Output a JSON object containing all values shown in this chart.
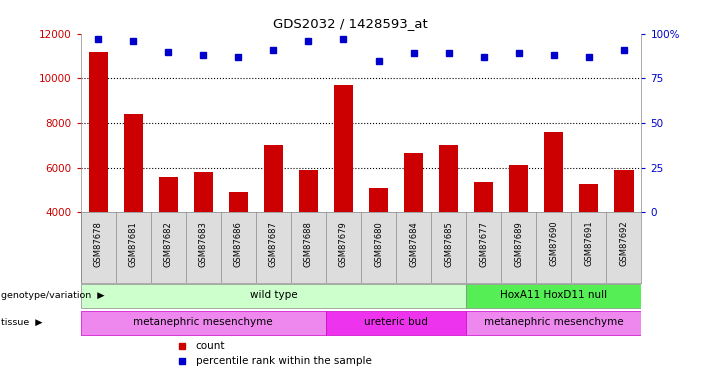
{
  "title": "GDS2032 / 1428593_at",
  "samples": [
    "GSM87678",
    "GSM87681",
    "GSM87682",
    "GSM87683",
    "GSM87686",
    "GSM87687",
    "GSM87688",
    "GSM87679",
    "GSM87680",
    "GSM87684",
    "GSM87685",
    "GSM87677",
    "GSM87689",
    "GSM87690",
    "GSM87691",
    "GSM87692"
  ],
  "counts": [
    11200,
    8400,
    5600,
    5800,
    4900,
    7000,
    5900,
    9700,
    5100,
    6650,
    7000,
    5350,
    6100,
    7600,
    5250,
    5900
  ],
  "percentile_ranks": [
    97,
    96,
    90,
    88,
    87,
    91,
    96,
    97,
    85,
    89,
    89,
    87,
    89,
    88,
    87,
    91
  ],
  "ylim_left": [
    4000,
    12000
  ],
  "ylim_right": [
    0,
    100
  ],
  "yticks_left": [
    4000,
    6000,
    8000,
    10000,
    12000
  ],
  "yticks_right": [
    0,
    25,
    50,
    75,
    100
  ],
  "bar_color": "#cc0000",
  "dot_color": "#0000cc",
  "grid_color": "#000000",
  "bg_color": "#ffffff",
  "genotype_groups": [
    {
      "label": "wild type",
      "start": 0,
      "end": 11,
      "color": "#ccffcc"
    },
    {
      "label": "HoxA11 HoxD11 null",
      "start": 11,
      "end": 16,
      "color": "#55ee55"
    }
  ],
  "tissue_groups": [
    {
      "label": "metanephric mesenchyme",
      "start": 0,
      "end": 7,
      "color": "#ee88ee"
    },
    {
      "label": "ureteric bud",
      "start": 7,
      "end": 11,
      "color": "#ee33ee"
    },
    {
      "label": "metanephric mesenchyme",
      "start": 11,
      "end": 16,
      "color": "#ee88ee"
    }
  ],
  "legend_count_color": "#cc0000",
  "legend_pct_color": "#0000cc",
  "left_ytick_color": "#cc0000",
  "right_ytick_color": "#0000cc",
  "sample_bg_color": "#dddddd",
  "sample_border_color": "#888888"
}
